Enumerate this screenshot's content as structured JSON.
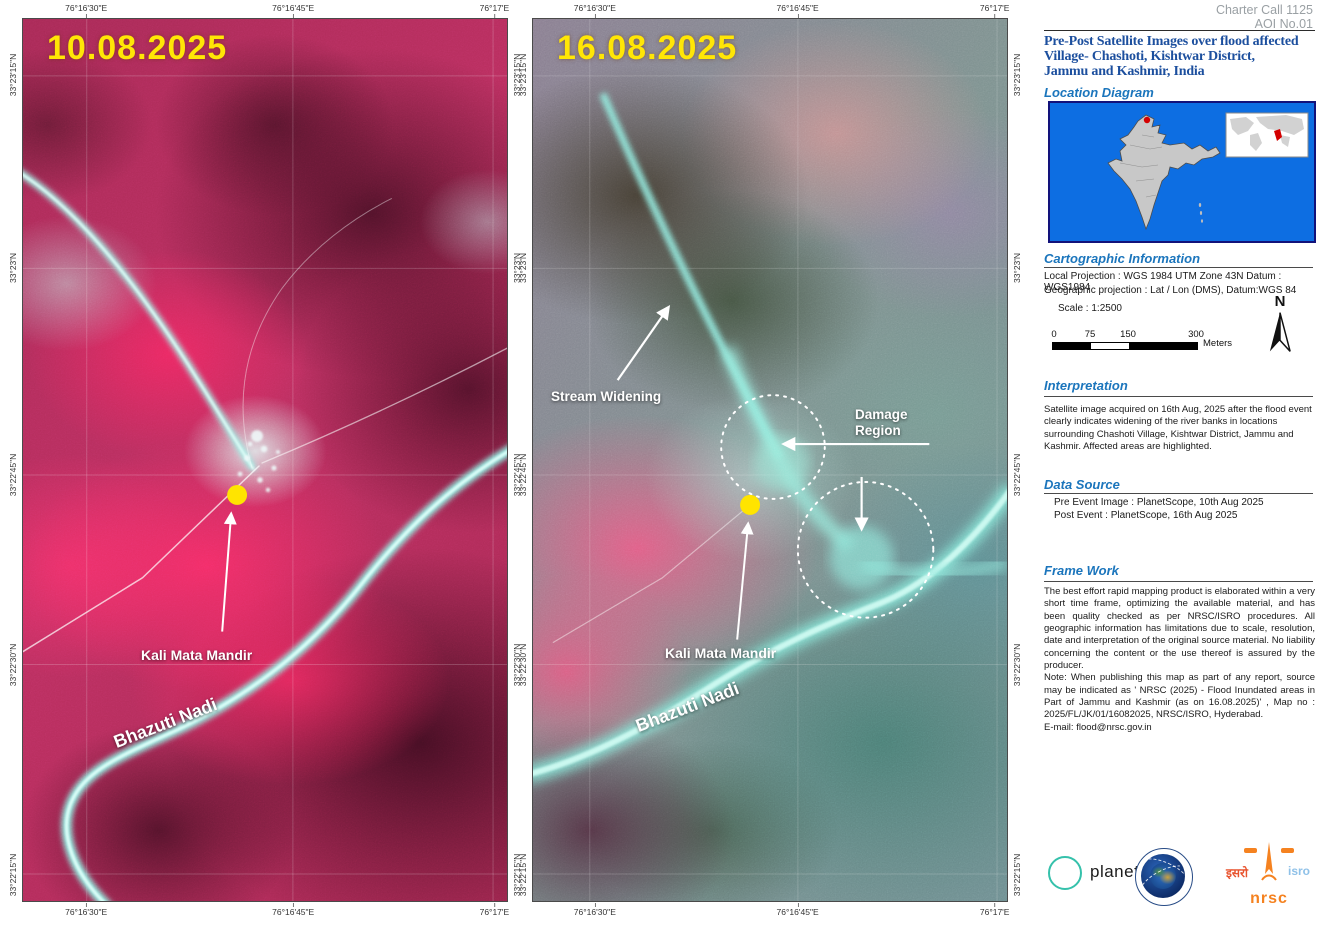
{
  "header": {
    "line1": "Charter Call 1125",
    "line2": "AOI No.01"
  },
  "title": {
    "line1": "Pre-Post Satellite Images over flood affected",
    "line2": "Village- Chashoti, Kishtwar District,",
    "line3": "Jammu and Kashmir, India"
  },
  "location": {
    "heading": "Location Diagram"
  },
  "cartographic": {
    "heading": "Cartographic Information",
    "projection_line1": "Local Projection : WGS 1984 UTM Zone 43N Datum : WGS1984",
    "projection_line2": "Geographic projection : Lat / Lon (DMS), Datum:WGS 84",
    "scale_text": "Scale : 1:2500",
    "scalebar_labels": [
      "0",
      "75",
      "150",
      "300"
    ],
    "scalebar_unit": "Meters",
    "north_label": "N"
  },
  "interpretation": {
    "heading": "Interpretation",
    "body": "Satellite image acquired on 16th Aug, 2025 after the flood event clearly indicates widening of the river banks in locations surrounding Chashoti Village, Kishtwar District, Jammu and Kashmir. Affected areas are highlighted."
  },
  "data_source": {
    "heading": "Data Source",
    "line1": "Pre Event Image : PlanetScope, 10th Aug 2025",
    "line2": "Post Event : PlanetScope, 16th Aug 2025"
  },
  "framework": {
    "heading": "Frame Work",
    "body": "The best effort rapid mapping product is elaborated within a very short time frame, optimizing the available material, and has been quality checked as per NRSC/ISRO procedures. All geographic information has limitations due to scale, resolution, date and interpretation of the original source material. No liability concerning the content or the use thereof is assured by the producer.",
    "note": "Note: When publishing this map as part of any report, source may be indicated as ' NRSC (2025) - Flood Inundated areas in Part of Jammu and Kashmir (as on 16.08.2025)' , Map no : 2025/FL/JK/01/16082025, NRSC/ISRO, Hyderabad.",
    "email": "E-mail:  flood@nrsc.gov.in"
  },
  "maps": {
    "pre": {
      "date": "10.08.2025",
      "kali_label": "Kali Mata Mandir",
      "river_label": "Bhazuti Nadi"
    },
    "post": {
      "date": "16.08.2025",
      "stream_label": "Stream Widening",
      "damage_line1": "Damage",
      "damage_line2": "Region",
      "kali_label": "Kali Mata Mandir",
      "river_label": "Bhazuti Nadi"
    }
  },
  "axes": {
    "lon": [
      "76°16'30\"E",
      "76°16'45\"E",
      "76°17'E"
    ],
    "lat": [
      "33°23'15\"N",
      "33°23'N",
      "33°22'45\"N",
      "33°22'30\"N",
      "33°22'15\"N"
    ]
  },
  "logos": {
    "planet": "planet.",
    "isro_devanagari": "इसरो",
    "isro_latin": "isro",
    "nrsc": "nrsc"
  },
  "colors": {
    "accent_blue": "#1b75bc",
    "title_blue": "#1c4f9e",
    "date_yellow": "#ffe606",
    "location_bg": "#0d6ee2",
    "nrsc_orange": "#f58220",
    "river_cyan": "#8deee2",
    "marker_yellow": "#ffe400"
  }
}
